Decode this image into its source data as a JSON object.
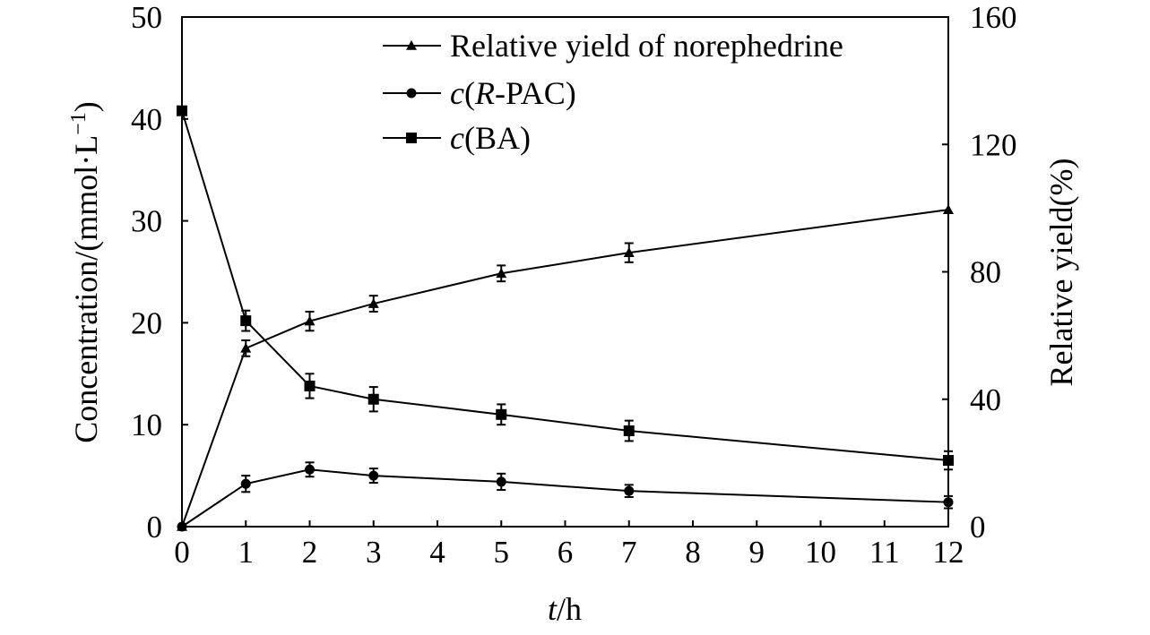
{
  "chart_data": {
    "type": "line",
    "xlabel": {
      "var": "t",
      "unit": "/h"
    },
    "ylabel_left": "Concentration/(mmol·L",
    "ylabel_left_sup": "−1",
    "ylabel_left_close": ")",
    "ylabel_right": "Relative yield(%)",
    "xlim": [
      0,
      12
    ],
    "ylim_left": [
      0,
      50
    ],
    "ylim_right": [
      0,
      160
    ],
    "x_ticks": [
      0,
      1,
      2,
      3,
      4,
      5,
      6,
      7,
      8,
      9,
      10,
      11,
      12
    ],
    "y_left_ticks": [
      0,
      10,
      20,
      30,
      40,
      50
    ],
    "y_right_ticks": [
      0,
      40,
      80,
      120,
      160
    ],
    "grid": false,
    "legend_position": "top-right",
    "series": [
      {
        "name": "Relative yield of norephedrine",
        "marker": "triangle",
        "axis": "right",
        "x": [
          0,
          1,
          2,
          3,
          5,
          7,
          12
        ],
        "values": [
          0,
          56,
          64.5,
          70,
          79.5,
          86,
          99.5
        ],
        "errors": [
          0,
          2.5,
          3,
          2.5,
          2.5,
          3,
          0
        ]
      },
      {
        "name": "c(R-PAC)",
        "marker": "circle",
        "axis": "left",
        "x": [
          0,
          1,
          2,
          3,
          5,
          7,
          12
        ],
        "values": [
          0,
          4.2,
          5.6,
          5.0,
          4.4,
          3.5,
          2.4
        ],
        "errors": [
          0,
          0.8,
          0.7,
          0.7,
          0.8,
          0.6,
          0.6
        ]
      },
      {
        "name": "c(BA)",
        "marker": "square",
        "axis": "left",
        "x": [
          0,
          1,
          2,
          3,
          5,
          7,
          12
        ],
        "values": [
          40.8,
          20.2,
          13.8,
          12.5,
          11.0,
          9.4,
          6.5
        ],
        "errors": [
          0,
          1.0,
          1.2,
          1.2,
          1.0,
          1.0,
          0.9
        ]
      }
    ]
  }
}
